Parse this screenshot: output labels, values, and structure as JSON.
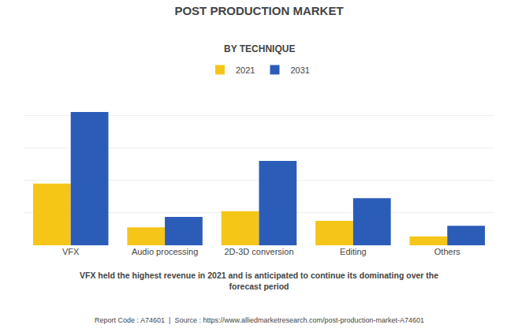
{
  "chart_data": {
    "type": "bar",
    "title": "POST PRODUCTION MARKET",
    "subtitle": "BY TECHNIQUE",
    "categories": [
      "VFX",
      "Audio processing",
      "2D-3D conversion",
      "Editing",
      "Others"
    ],
    "series": [
      {
        "name": "2021",
        "color": "#F5C518",
        "values": [
          3.8,
          1.1,
          2.1,
          1.5,
          0.55
        ]
      },
      {
        "name": "2031",
        "color": "#2B5CB8",
        "values": [
          8.2,
          1.75,
          5.2,
          2.9,
          1.2
        ]
      }
    ],
    "ylim": [
      0,
      10
    ],
    "yticks": [
      0,
      2,
      4,
      6,
      8,
      10
    ],
    "grid": true,
    "tick_labels": "x",
    "legend": "top",
    "annotations": [
      "VFX held the highest revenue in 2021 and is anticipated to continue its dominating over the\nforecast period",
      "Report Code : A74601  |  Source : https://www.alliedmarketresearch.com/post-production-market-A74601"
    ]
  }
}
